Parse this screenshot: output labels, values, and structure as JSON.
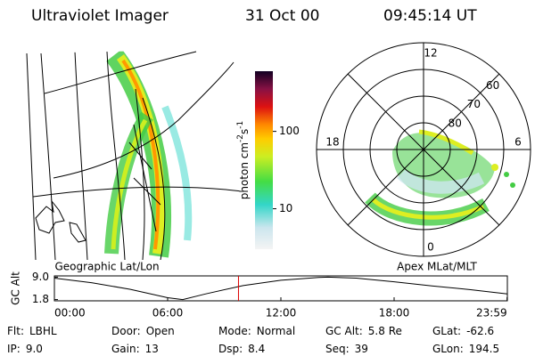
{
  "header": {
    "title": "Ultraviolet Imager",
    "date": "31 Oct 00",
    "time": "09:45:14 UT"
  },
  "map": {
    "label": "Geographic Lat/Lon"
  },
  "colorbar": {
    "label": "photon cm",
    "label_exp1": "-2",
    "label_unit2": "s",
    "label_exp2": "-1",
    "scale": "log",
    "range": [
      3,
      600
    ],
    "ticks": [
      10,
      100
    ]
  },
  "polar": {
    "label": "Apex MLat/MLT",
    "mlt_labels": [
      12,
      6,
      0,
      18
    ],
    "lat_labels": [
      80,
      70,
      60
    ],
    "outer_lat": 50
  },
  "altitude": {
    "ylabel": "GC Alt",
    "ylim": [
      1.4,
      9.4
    ],
    "yticks": [
      {
        "value": 9,
        "label": "9.0"
      },
      1.8
    ],
    "xlim": [
      0,
      24
    ],
    "xticks": [
      {
        "value": 0,
        "label": "00:00"
      },
      {
        "value": 6,
        "label": "06:00"
      },
      {
        "value": 12,
        "label": "12:00"
      },
      {
        "value": 18,
        "label": "18:00"
      },
      {
        "value": 23.983,
        "label": "23:59"
      }
    ],
    "hours": [
      0,
      2,
      4,
      6,
      6.8,
      8,
      10,
      12,
      14,
      14.5,
      16,
      18,
      20,
      22,
      24
    ],
    "values": [
      8.7,
      7.2,
      5.1,
      2.4,
      1.8,
      3.6,
      6.3,
      8.0,
      8.9,
      9.0,
      8.7,
      7.5,
      6.2,
      5.0,
      3.6
    ],
    "current_time": 9.754
  },
  "info": [
    [
      {
        "label": "Flt:",
        "value": "LBHL"
      },
      {
        "label": "Door:",
        "value": "Open"
      },
      {
        "label": "Mode:",
        "value": "Normal"
      },
      {
        "label": "GC Alt:",
        "value": "5.8 Re"
      },
      {
        "label": "GLat:",
        "value": "-62.6"
      }
    ],
    [
      {
        "label": "IP:",
        "value": "9.0"
      },
      {
        "label": "Gain:",
        "value": "13"
      },
      {
        "label": "Dsp:",
        "value": "8.4"
      },
      {
        "label": "Seq:",
        "value": "39"
      },
      {
        "label": "GLon:",
        "value": "194.5"
      }
    ]
  ]
}
